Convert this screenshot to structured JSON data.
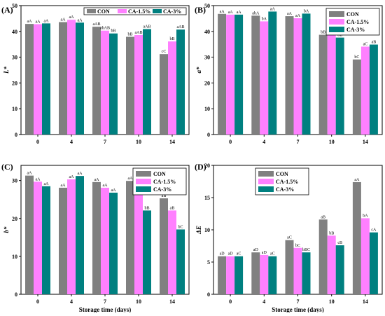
{
  "colors": {
    "CON": "#808080",
    "CA-1.5%": "#ff80ff",
    "CA-3%": "#008080"
  },
  "chart_data": [
    {
      "type": "bar",
      "panel": "(A)",
      "ylabel": "L*",
      "xlabel": "",
      "categories": [
        "0",
        "4",
        "7",
        "10",
        "14"
      ],
      "ylim": [
        0,
        50
      ],
      "yticks": [
        0,
        10,
        20,
        30,
        40,
        50
      ],
      "legend_position": "top-right-horizontal",
      "series": [
        {
          "name": "CON",
          "values": [
            42.9,
            43.6,
            41.8,
            37.9,
            31.2
          ],
          "labels": [
            "aA",
            "aA",
            "aAB",
            "bB",
            "cC"
          ]
        },
        {
          "name": "CA-1.5%",
          "values": [
            42.8,
            44.5,
            40.3,
            38.6,
            36.1
          ],
          "labels": [
            "aA",
            "aA",
            "abAB",
            "aAB",
            "bB"
          ]
        },
        {
          "name": "CA-3%",
          "values": [
            43.1,
            43.4,
            39.2,
            40.9,
            40.7
          ],
          "labels": [
            "aA",
            "aA",
            "bB",
            "aAB",
            "aAB"
          ]
        }
      ]
    },
    {
      "type": "bar",
      "panel": "(B)",
      "ylabel": "a*",
      "xlabel": "",
      "categories": [
        "0",
        "4",
        "7",
        "10",
        "14"
      ],
      "ylim": [
        0,
        50
      ],
      "yticks": [
        0,
        10,
        20,
        30,
        40,
        50
      ],
      "legend_position": "top-right",
      "series": [
        {
          "name": "CON",
          "values": [
            46.8,
            46.1,
            45.9,
            38.7,
            29.1
          ],
          "labels": [
            "aA",
            "abA",
            "aA",
            "bB",
            "bC"
          ]
        },
        {
          "name": "CA-1.5%",
          "values": [
            46.5,
            43.9,
            45.1,
            41.1,
            34.1
          ],
          "labels": [
            "aA",
            "bA",
            "aA",
            "aB",
            "aC"
          ]
        },
        {
          "name": "CA-3%",
          "values": [
            46.5,
            47.7,
            46.9,
            37.6,
            34.9
          ],
          "labels": [
            "aA",
            "aA",
            "bA",
            "bB",
            "aB"
          ]
        }
      ]
    },
    {
      "type": "bar",
      "panel": "(C)",
      "ylabel": "b*",
      "xlabel": "Storage time (days)",
      "categories": [
        "0",
        "4",
        "7",
        "10",
        "14"
      ],
      "ylim": [
        0,
        34
      ],
      "yticks": [
        0,
        10,
        20,
        30
      ],
      "legend_position": "top-right",
      "series": [
        {
          "name": "CON",
          "values": [
            31.3,
            28.1,
            29.6,
            29.9,
            25.3
          ],
          "labels": [
            "aA",
            "aA",
            "aA",
            "aA",
            "aB"
          ]
        },
        {
          "name": "CA-1.5%",
          "values": [
            29.7,
            30.3,
            28.1,
            26.9,
            22.1
          ],
          "labels": [
            "aA",
            "aA",
            "aA",
            "aA",
            "aB"
          ]
        },
        {
          "name": "CA-3%",
          "values": [
            28.5,
            31.2,
            26.8,
            22.1,
            17.1
          ],
          "labels": [
            "aA",
            "aA",
            "aA",
            "bB",
            "bC"
          ]
        }
      ]
    },
    {
      "type": "bar",
      "panel": "(D)",
      "ylabel": "ΔE",
      "xlabel": "Storage time (days)",
      "categories": [
        "0",
        "4",
        "7",
        "10",
        "14"
      ],
      "ylim": [
        0,
        20
      ],
      "yticks": [
        0,
        5,
        10,
        15,
        20
      ],
      "legend_position": "top-left",
      "series": [
        {
          "name": "CON",
          "values": [
            5.9,
            6.5,
            8.4,
            11.6,
            17.4
          ],
          "labels": [
            "aD",
            "aD",
            "aC",
            "aB",
            "aA"
          ]
        },
        {
          "name": "CA-1.5%",
          "values": [
            5.9,
            6.1,
            7.2,
            9.1,
            11.8
          ],
          "labels": [
            "aD",
            "aD",
            "bC",
            "bB",
            "bA"
          ]
        },
        {
          "name": "CA-3%",
          "values": [
            5.9,
            5.9,
            6.5,
            7.6,
            9.6
          ],
          "labels": [
            "aC",
            "aC",
            "bBC",
            "cB",
            "cA"
          ]
        }
      ]
    }
  ]
}
